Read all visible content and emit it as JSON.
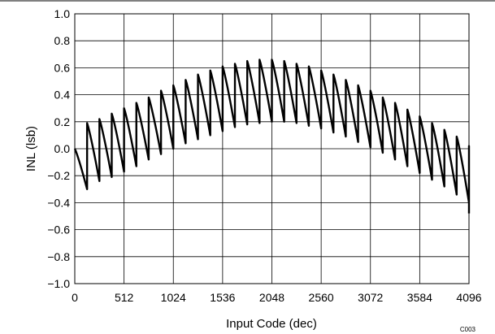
{
  "chart_data": {
    "type": "line",
    "title": "",
    "xlabel": "Input Code (dec)",
    "ylabel": "INL (lsb)",
    "xlim": [
      0,
      4096
    ],
    "ylim": [
      -1.0,
      1.0
    ],
    "x_ticks": [
      0,
      512,
      1024,
      1536,
      2048,
      2560,
      3072,
      3584,
      4096
    ],
    "y_ticks": [
      1.0,
      0.8,
      0.6,
      0.4,
      0.2,
      0.0,
      -0.2,
      -0.4,
      -0.6,
      -0.8,
      -1.0
    ],
    "y_tick_labels": [
      "1.0",
      "0.8",
      "0.6",
      "0.4",
      "0.2",
      "0.0",
      "−0.2",
      "−0.4",
      "−0.6",
      "−0.8",
      "−1.0"
    ],
    "grid": true,
    "legend": "none",
    "line_color": "#000000",
    "segment_width_codes": 128,
    "series": [
      {
        "segments_start_end": [
          [
            0.0,
            -0.3
          ],
          [
            0.19,
            -0.24
          ],
          [
            0.22,
            -0.21
          ],
          [
            0.26,
            -0.17
          ],
          [
            0.3,
            -0.13
          ],
          [
            0.34,
            -0.08
          ],
          [
            0.38,
            -0.04
          ],
          [
            0.43,
            0.0
          ],
          [
            0.47,
            0.04
          ],
          [
            0.51,
            0.07
          ],
          [
            0.55,
            0.1
          ],
          [
            0.58,
            0.13
          ],
          [
            0.61,
            0.16
          ],
          [
            0.63,
            0.18
          ],
          [
            0.65,
            0.19
          ],
          [
            0.66,
            0.2
          ],
          [
            0.66,
            0.2
          ],
          [
            0.65,
            0.19
          ],
          [
            0.63,
            0.17
          ],
          [
            0.61,
            0.15
          ],
          [
            0.58,
            0.12
          ],
          [
            0.55,
            0.09
          ],
          [
            0.51,
            0.05
          ],
          [
            0.47,
            0.01
          ],
          [
            0.43,
            -0.03
          ],
          [
            0.38,
            -0.08
          ],
          [
            0.34,
            -0.13
          ],
          [
            0.29,
            -0.18
          ],
          [
            0.24,
            -0.23
          ],
          [
            0.19,
            -0.28
          ],
          [
            0.14,
            -0.34
          ],
          [
            0.09,
            -0.4
          ],
          [
            0.02,
            -0.48
          ]
        ]
      }
    ]
  },
  "corner_code": "C003"
}
